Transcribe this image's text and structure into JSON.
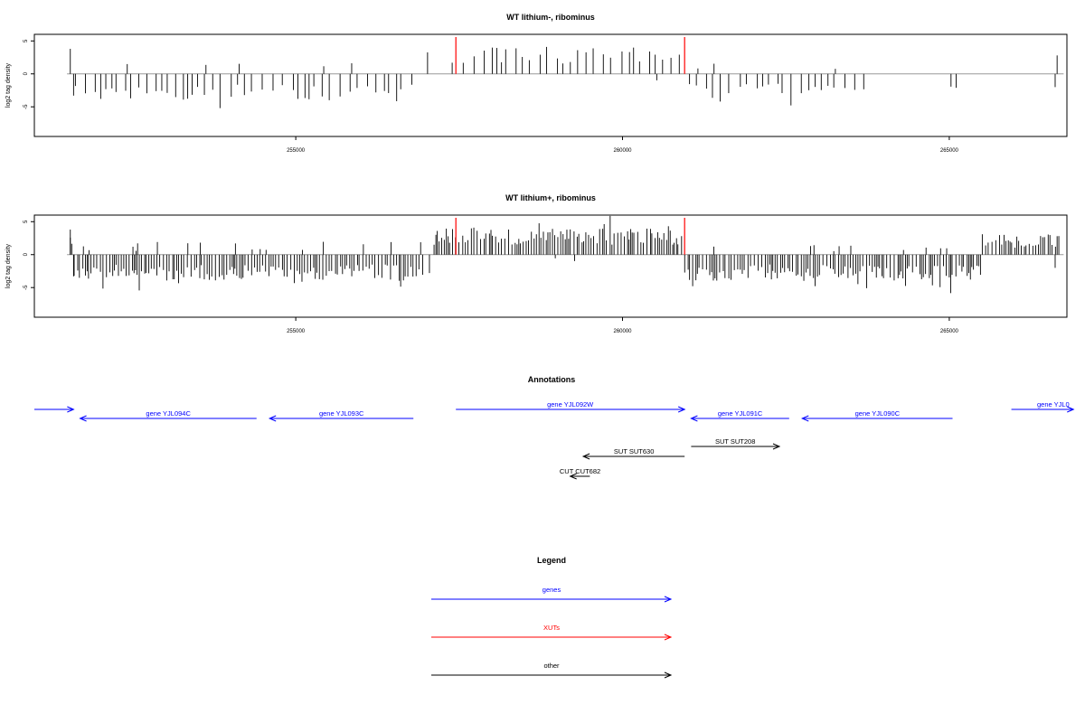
{
  "chart_data": [
    {
      "type": "bar",
      "title": "WT lithium-, ribominus",
      "ylabel": "log2 tag density",
      "xlim": [
        251000,
        266800
      ],
      "ylim": [
        -9.5,
        6
      ],
      "x_ticks": [
        "255000",
        "260000",
        "265000"
      ],
      "y_ticks": [
        "5",
        "0",
        "-5"
      ],
      "highlight_positions": [
        257450,
        260950
      ],
      "highlight_color": "#ff0000",
      "bar_color": "#000000",
      "baseline_color": "#999999",
      "density": 1.0
    },
    {
      "type": "bar",
      "title": "WT lithium+, ribominus",
      "ylabel": "log2 tag density",
      "xlim": [
        251000,
        266800
      ],
      "ylim": [
        -9.5,
        6
      ],
      "x_ticks": [
        "255000",
        "260000",
        "265000"
      ],
      "y_ticks": [
        "5",
        "0",
        "-5"
      ],
      "highlight_positions": [
        257450,
        260950
      ],
      "highlight_color": "#ff0000",
      "bar_color": "#000000",
      "baseline_color": "#999999",
      "density": 3.0
    }
  ],
  "annotations": {
    "title": "Annotations",
    "features": [
      {
        "label": "",
        "start": 251000,
        "end": 251600,
        "dir": "+",
        "kind": "gene",
        "row": 0
      },
      {
        "label": "gene YJL094C",
        "start": 251700,
        "end": 254400,
        "dir": "-",
        "kind": "gene",
        "row": 1
      },
      {
        "label": "gene YJL093C",
        "start": 254600,
        "end": 256800,
        "dir": "-",
        "kind": "gene",
        "row": 1
      },
      {
        "label": "gene YJL092W",
        "start": 257450,
        "end": 260950,
        "dir": "+",
        "kind": "gene",
        "row": 0
      },
      {
        "label": "gene YJL091C",
        "start": 261050,
        "end": 262550,
        "dir": "-",
        "kind": "gene",
        "row": 1
      },
      {
        "label": "gene YJL090C",
        "start": 262750,
        "end": 265050,
        "dir": "-",
        "kind": "gene",
        "row": 1
      },
      {
        "label": "gene YJL0",
        "start": 265950,
        "end": 266900,
        "dir": "+",
        "kind": "gene",
        "row": 0
      },
      {
        "label": "SUT SUT630",
        "start": 259400,
        "end": 260950,
        "dir": "-",
        "kind": "other",
        "row": 3
      },
      {
        "label": "SUT SUT208",
        "start": 261050,
        "end": 262400,
        "dir": "+",
        "kind": "other",
        "row": 2
      },
      {
        "label": "CUT CUT682",
        "start": 259200,
        "end": 259500,
        "dir": "-",
        "kind": "other",
        "row": 4
      }
    ],
    "colors": {
      "gene": "#0000ff",
      "xut": "#ff0000",
      "other": "#000000"
    }
  },
  "legend": {
    "title": "Legend",
    "items": [
      {
        "label": "genes",
        "color": "#0000ff"
      },
      {
        "label": "XUTs",
        "color": "#ff0000"
      },
      {
        "label": "other",
        "color": "#000000"
      }
    ]
  }
}
